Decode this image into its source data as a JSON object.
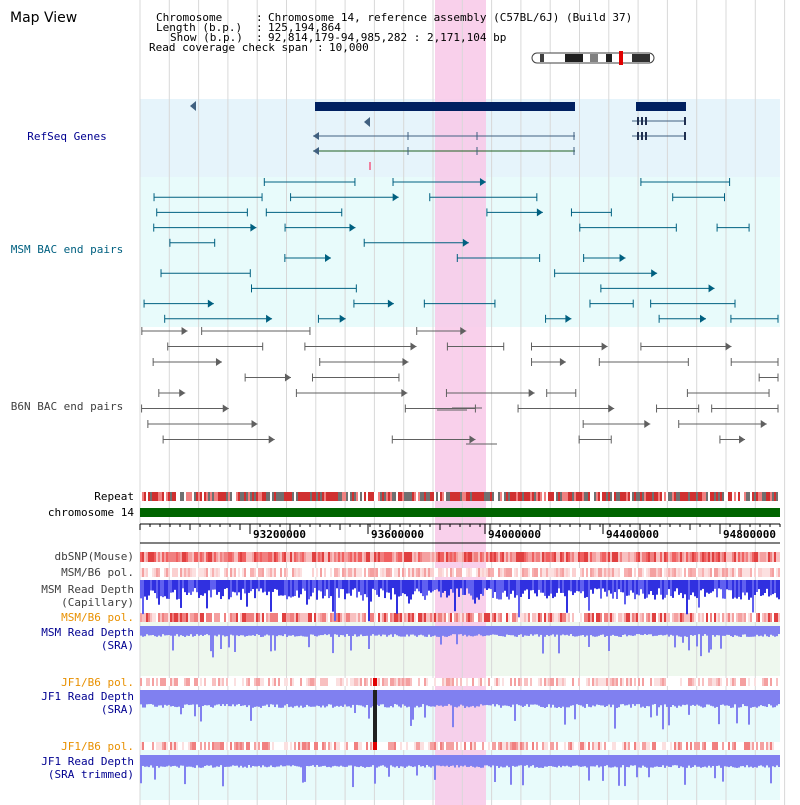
{
  "title": "Map View",
  "header": {
    "chromosome_key": "Chromosome",
    "chromosome_val": "Chromosome 14, reference assembly (C57BL/6J) (Build 37)",
    "length_key": "Length (b.p.)",
    "length_val": "125,194,864",
    "show_key": "Show (b.p.)",
    "show_val": "92,814,179-94,985,282 : 2,171,104 bp",
    "coverage_key": "Read coverage check span",
    "coverage_val": "10,000"
  },
  "tracks": {
    "refseq": "RefSeq Genes",
    "msm_bac": "MSM BAC end pairs",
    "b6n_bac": "B6N BAC end pairs",
    "repeat": "Repeat",
    "chrom": "chromosome 14",
    "dbsnp": "dbSNP(Mouse)",
    "msm_b6_pol_1": "MSM/B6 pol.",
    "msm_depth_cap_1": "MSM Read Depth",
    "msm_depth_cap_2": "(Capillary)",
    "msm_b6_pol_2": "MSM/B6 pol.",
    "msm_depth_sra_1": "MSM Read Depth",
    "msm_depth_sra_2": "(SRA)",
    "jf1_pol_1": "JF1/B6 pol.",
    "jf1_depth_1": "JF1 Read Depth",
    "jf1_depth_2": "(SRA)",
    "jf1_pol_2": "JF1/B6 pol.",
    "jf1_trim_1": "JF1 Read Depth",
    "jf1_trim_2": "(SRA trimmed)"
  },
  "axis": {
    "ticks": [
      "93200000",
      "93600000",
      "94000000",
      "94400000",
      "94800000"
    ]
  },
  "colors": {
    "refseq_bg": "#e6f4fb",
    "msm_bg": "#e8fbfb",
    "highlight": "#f8c8e8",
    "gene": "#002060",
    "msm_feature": "#006080",
    "b6n_feature": "#606060",
    "chrom_bar": "#006400",
    "depth": "#3030e0",
    "depth_light": "#8080f0"
  }
}
